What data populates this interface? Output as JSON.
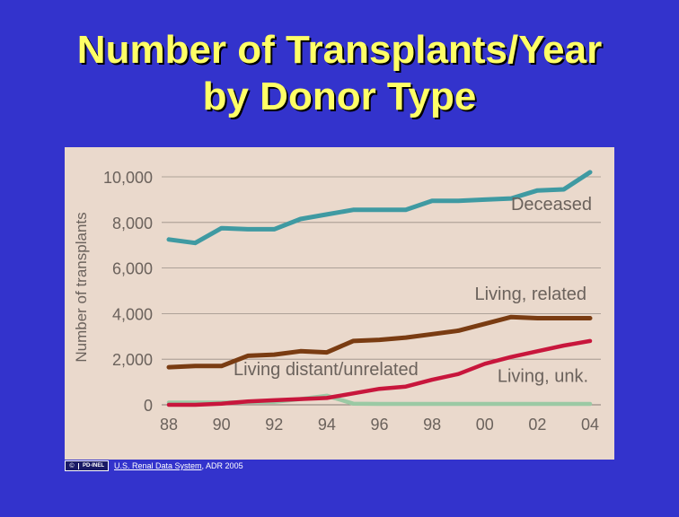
{
  "title": {
    "line1": "Number of Transplants/Year",
    "line2": "by Donor Type"
  },
  "footer": {
    "badge_symbol": "©",
    "badge_text": "PD-INEL",
    "source_link": "U.S. Renal Data System",
    "source_rest": ", ADR 2005"
  },
  "colors": {
    "background": "#3333cc",
    "title": "#ffff66",
    "panel": "#ead9cc"
  },
  "chart_data": {
    "type": "line",
    "title": "",
    "xlabel": "",
    "ylabel": "Number of transplants",
    "x": [
      1988,
      1989,
      1990,
      1991,
      1992,
      1993,
      1994,
      1995,
      1996,
      1997,
      1998,
      1999,
      2000,
      2001,
      2002,
      2003,
      2004
    ],
    "x_tick_labels": [
      "88",
      "90",
      "92",
      "94",
      "96",
      "98",
      "00",
      "02",
      "04"
    ],
    "x_tick_values": [
      1988,
      1990,
      1992,
      1994,
      1996,
      1998,
      2000,
      2002,
      2004
    ],
    "y_tick_labels": [
      "10,000",
      "8,000",
      "6,000",
      "4,000",
      "2,000",
      "0"
    ],
    "y_tick_values": [
      10000,
      8000,
      6000,
      4000,
      2000,
      0
    ],
    "xlim": [
      1988,
      2004
    ],
    "ylim": [
      0,
      10000
    ],
    "grid": "horizontal",
    "series": [
      {
        "name": "Deceased",
        "color": "#3f9aa2",
        "values": [
          7250,
          7100,
          7750,
          7700,
          7700,
          8150,
          8350,
          8550,
          8550,
          8550,
          8950,
          8950,
          9000,
          9050,
          9400,
          9450,
          10200
        ]
      },
      {
        "name": "Living, related",
        "color": "#7a3c12",
        "values": [
          1650,
          1700,
          1700,
          2150,
          2200,
          2350,
          2300,
          2800,
          2850,
          2950,
          3100,
          3250,
          3550,
          3850,
          3800,
          3800,
          3800
        ]
      },
      {
        "name": "Living distant/unrelated",
        "color": "#9bc9a4",
        "values": [
          100,
          100,
          100,
          120,
          130,
          250,
          400,
          50,
          40,
          40,
          40,
          40,
          40,
          40,
          40,
          40,
          40
        ]
      },
      {
        "name": "Living, unk.",
        "color": "#c8163c",
        "values": [
          0,
          0,
          50,
          150,
          200,
          250,
          300,
          500,
          700,
          800,
          1100,
          1350,
          1800,
          2100,
          2350,
          2600,
          2800
        ]
      }
    ]
  }
}
